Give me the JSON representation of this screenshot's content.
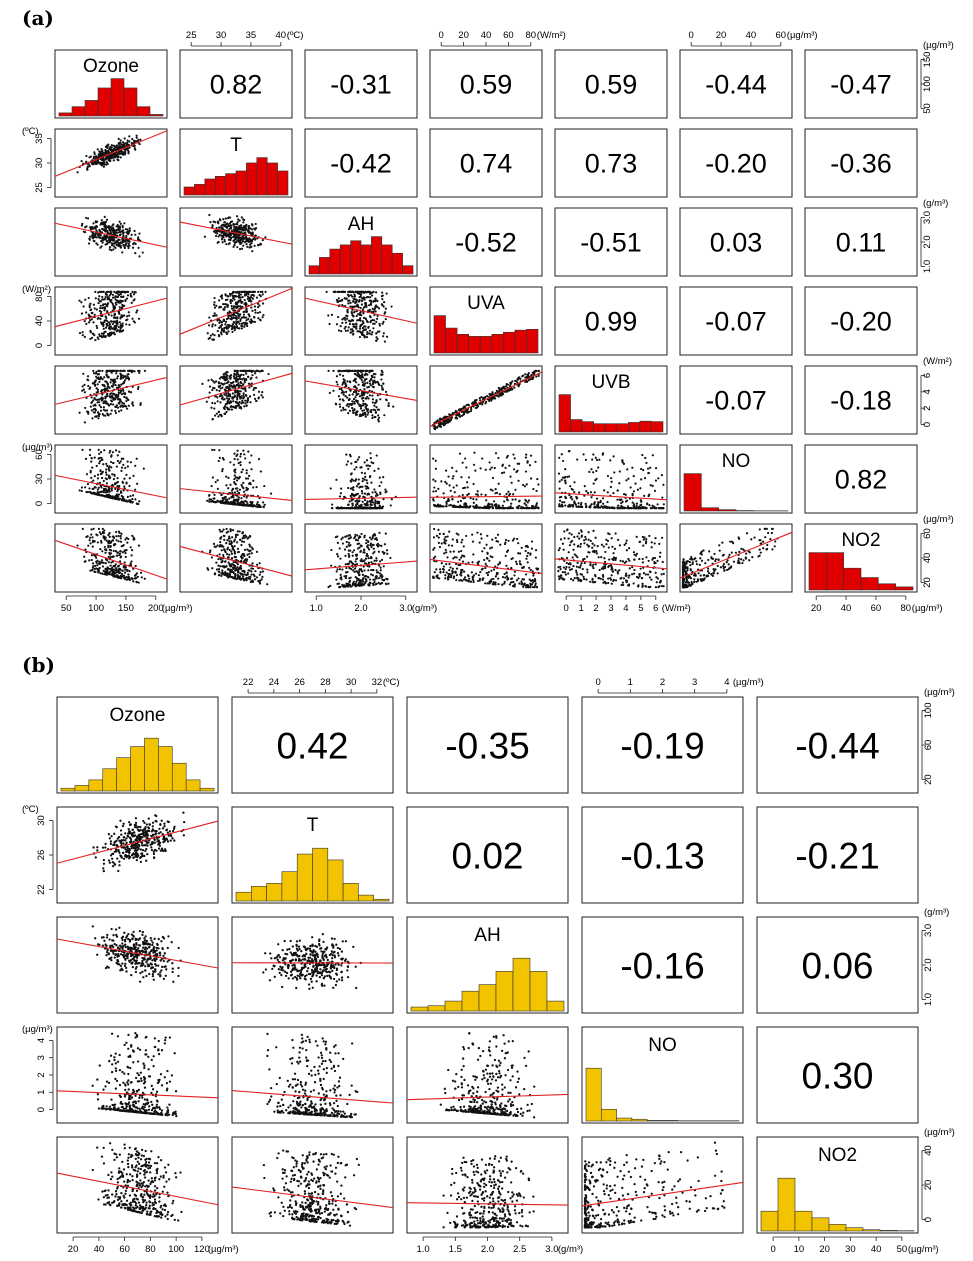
{
  "panels": [
    {
      "label": "(a)",
      "vars": [
        "Ozone",
        "T",
        "AH",
        "UVA",
        "UVB",
        "NO",
        "NO2"
      ],
      "histColor": "#e00000",
      "hist": [
        [
          1,
          3,
          5,
          9,
          12,
          9,
          3,
          0.5
        ],
        [
          1.5,
          2,
          3,
          3.5,
          4,
          4.5,
          6,
          7,
          6,
          4.5
        ],
        [
          2,
          4,
          6,
          7,
          8,
          7,
          9,
          7,
          5,
          2
        ],
        [
          9,
          6,
          4.5,
          4,
          4,
          4.5,
          5,
          5.5,
          5.7
        ],
        [
          9,
          3,
          2.5,
          2,
          2,
          2,
          2.3,
          2.6,
          2.5
        ],
        [
          8,
          0.7,
          0.3,
          0.1,
          0.05,
          0.05
        ],
        [
          6,
          6,
          3.5,
          2,
          1,
          0.5
        ]
      ],
      "corr": {
        "0-1": "0.82",
        "0-2": "-0.31",
        "0-3": "0.59",
        "0-4": "0.59",
        "0-5": "-0.44",
        "0-6": "-0.47",
        "1-2": "-0.42",
        "1-3": "0.74",
        "1-4": "0.73",
        "1-5": "-0.20",
        "1-6": "-0.36",
        "2-3": "-0.52",
        "2-4": "-0.51",
        "2-5": "0.03",
        "2-6": "0.11",
        "3-4": "0.99",
        "3-5": "-0.07",
        "3-6": "-0.20",
        "4-5": "-0.07",
        "4-6": "-0.18",
        "5-6": "0.82"
      },
      "axes": {
        "top": [
          {
            "col": 1,
            "ticks": [
              "25",
              "30",
              "35",
              "40"
            ],
            "unit": "(ºC)"
          },
          {
            "col": 3,
            "ticks": [
              "0",
              "20",
              "40",
              "60",
              "80"
            ],
            "unit": "(W/m²)"
          },
          {
            "col": 5,
            "ticks": [
              "0",
              "20",
              "40",
              "60"
            ],
            "unit": "(µg/m³)"
          }
        ],
        "bottom": [
          {
            "col": 0,
            "ticks": [
              "50",
              "100",
              "150",
              "200"
            ],
            "unit": "(µg/m³)"
          },
          {
            "col": 2,
            "ticks": [
              "1.0",
              "2.0",
              "3.0"
            ],
            "unit": "(g/m³)"
          },
          {
            "col": 4,
            "ticks": [
              "0",
              "1",
              "2",
              "3",
              "4",
              "5",
              "6"
            ],
            "unit": "(W/m²)"
          },
          {
            "col": 6,
            "ticks": [
              "20",
              "40",
              "60",
              "80"
            ],
            "unit": "(µg/m³)"
          }
        ],
        "left": [
          {
            "row": 1,
            "ticks": [
              "25",
              "30",
              "35"
            ],
            "unit": "(ºC)"
          },
          {
            "row": 3,
            "ticks": [
              "0",
              "40",
              "80"
            ],
            "unit": "(W/m²)"
          },
          {
            "row": 5,
            "ticks": [
              "0",
              "30",
              "60"
            ],
            "unit": "(µg/m³)"
          }
        ],
        "right": [
          {
            "row": 0,
            "ticks": [
              "50",
              "100",
              "150"
            ],
            "unit": "(µg/m³)"
          },
          {
            "row": 2,
            "ticks": [
              "1.0",
              "2.0",
              "3.0"
            ],
            "unit": "(g/m³)"
          },
          {
            "row": 4,
            "ticks": [
              "0",
              "2",
              "4",
              "6"
            ],
            "unit": "(W/m²)"
          },
          {
            "row": 6,
            "ticks": [
              "20",
              "40",
              "60"
            ],
            "unit": "(µg/m³)"
          }
        ]
      }
    },
    {
      "label": "(b)",
      "vars": [
        "Ozone",
        "T",
        "AH",
        "NO",
        "NO2"
      ],
      "histColor": "#f2c400",
      "hist": [
        [
          0.5,
          1,
          2,
          4,
          6,
          8,
          9.5,
          8,
          5,
          2,
          0.5
        ],
        [
          1.5,
          2.5,
          3,
          5,
          8,
          9,
          7,
          3,
          1,
          0.3
        ],
        [
          0.6,
          0.8,
          1.5,
          3,
          4,
          6,
          8,
          6,
          1.5
        ],
        [
          9,
          2,
          0.5,
          0.3,
          0.1,
          0.1,
          0.05,
          0.05,
          0.05,
          0.05
        ],
        [
          3,
          8,
          3,
          2,
          1,
          0.5,
          0.2,
          0.1,
          0.05
        ]
      ],
      "corr": {
        "0-1": "0.42",
        "0-2": "-0.35",
        "0-3": "-0.19",
        "0-4": "-0.44",
        "1-2": "0.02",
        "1-3": "-0.13",
        "1-4": "-0.21",
        "2-3": "-0.16",
        "2-4": "0.06",
        "3-4": "0.30"
      },
      "axes": {
        "top": [
          {
            "col": 1,
            "ticks": [
              "22",
              "24",
              "26",
              "28",
              "30",
              "32"
            ],
            "unit": "(ºC)"
          },
          {
            "col": 3,
            "ticks": [
              "0",
              "1",
              "2",
              "3",
              "4"
            ],
            "unit": "(µg/m³)"
          }
        ],
        "bottom": [
          {
            "col": 0,
            "ticks": [
              "20",
              "40",
              "60",
              "80",
              "100",
              "120"
            ],
            "unit": "(µg/m³)"
          },
          {
            "col": 2,
            "ticks": [
              "1.0",
              "1.5",
              "2.0",
              "2.5",
              "3.0"
            ],
            "unit": "(g/m³)"
          },
          {
            "col": 4,
            "ticks": [
              "0",
              "10",
              "20",
              "30",
              "40",
              "50"
            ],
            "unit": "(µg/m³)"
          }
        ],
        "left": [
          {
            "row": 1,
            "ticks": [
              "22",
              "26",
              "30"
            ],
            "unit": "(ºC)"
          },
          {
            "row": 3,
            "ticks": [
              "0",
              "1",
              "2",
              "3",
              "4"
            ],
            "unit": "(µg/m³)"
          }
        ],
        "right": [
          {
            "row": 0,
            "ticks": [
              "20",
              "60",
              "100"
            ],
            "unit": "(µg/m³)"
          },
          {
            "row": 2,
            "ticks": [
              "1.0",
              "2.0",
              "3.0"
            ],
            "unit": "(g/m³)"
          },
          {
            "row": 4,
            "ticks": [
              "0",
              "20",
              "40"
            ],
            "unit": "(µg/m³)"
          }
        ]
      }
    }
  ],
  "chart_data": {
    "type": "scatter",
    "panels": [
      {
        "label": "(a)",
        "variables": [
          "Ozone",
          "T",
          "AH",
          "UVA",
          "UVB",
          "NO",
          "NO2"
        ],
        "pearson_correlations": [
          [
            null,
            0.82,
            -0.31,
            0.59,
            0.59,
            -0.44,
            -0.47
          ],
          [
            null,
            null,
            -0.42,
            0.74,
            0.73,
            -0.2,
            -0.36
          ],
          [
            null,
            null,
            null,
            -0.52,
            -0.51,
            0.03,
            0.11
          ],
          [
            null,
            null,
            null,
            null,
            0.99,
            -0.07,
            -0.2
          ],
          [
            null,
            null,
            null,
            null,
            null,
            -0.07,
            -0.18
          ],
          [
            null,
            null,
            null,
            null,
            null,
            null,
            0.82
          ]
        ]
      },
      {
        "label": "(b)",
        "variables": [
          "Ozone",
          "T",
          "AH",
          "NO",
          "NO2"
        ],
        "pearson_correlations": [
          [
            null,
            0.42,
            -0.35,
            -0.19,
            -0.44
          ],
          [
            null,
            null,
            0.02,
            -0.13,
            -0.21
          ],
          [
            null,
            null,
            null,
            -0.16,
            0.06
          ],
          [
            null,
            null,
            null,
            null,
            0.3
          ]
        ]
      }
    ]
  }
}
